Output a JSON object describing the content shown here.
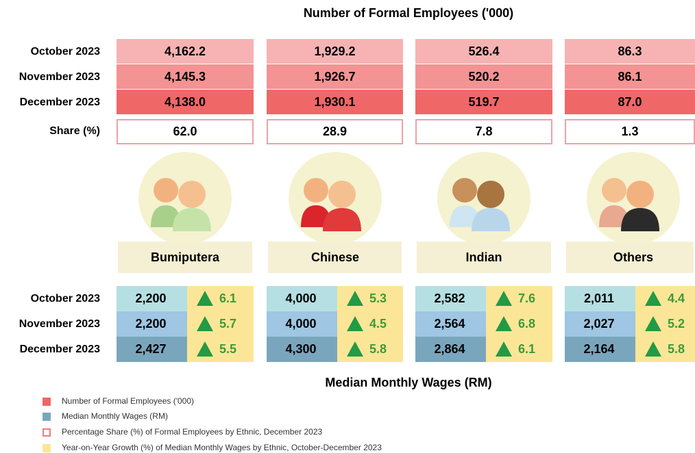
{
  "title": "Number of Formal Employees ('000)",
  "employees": {
    "row_labels": [
      "October 2023",
      "November 2023",
      "December 2023"
    ],
    "rows": [
      [
        "4,162.2",
        "1,929.2",
        "526.4",
        "86.3"
      ],
      [
        "4,145.3",
        "1,926.7",
        "520.2",
        "86.1"
      ],
      [
        "4,138.0",
        "1,930.1",
        "519.7",
        "87.0"
      ]
    ],
    "share_label": "Share (%)",
    "shares": [
      "62.0",
      "28.9",
      "7.8",
      "1.3"
    ]
  },
  "groups": [
    "Bumiputera",
    "Chinese",
    "Indian",
    "Others"
  ],
  "wages": {
    "row_labels": [
      "October 2023",
      "November 2023",
      "December 2023"
    ],
    "rows": [
      [
        {
          "wage": "2,200",
          "growth": "6.1"
        },
        {
          "wage": "4,000",
          "growth": "5.3"
        },
        {
          "wage": "2,582",
          "growth": "7.6"
        },
        {
          "wage": "2,011",
          "growth": "4.4"
        }
      ],
      [
        {
          "wage": "2,200",
          "growth": "5.7"
        },
        {
          "wage": "4,000",
          "growth": "4.5"
        },
        {
          "wage": "2,564",
          "growth": "6.8"
        },
        {
          "wage": "2,027",
          "growth": "5.2"
        }
      ],
      [
        {
          "wage": "2,427",
          "growth": "5.5"
        },
        {
          "wage": "4,300",
          "growth": "5.8"
        },
        {
          "wage": "2,864",
          "growth": "6.1"
        },
        {
          "wage": "2,164",
          "growth": "5.8"
        }
      ]
    ],
    "title": "Median Monthly Wages (RM)"
  },
  "legend": [
    "Number of Formal Employees ('000)",
    "Median Monthly Wages (RM)",
    "Percentage Share (%) of Formal Employees by Ethnic, December 2023",
    "Year-on-Year Growth (%) of Median Monthly Wages by Ethnic, October-December 2023"
  ]
}
